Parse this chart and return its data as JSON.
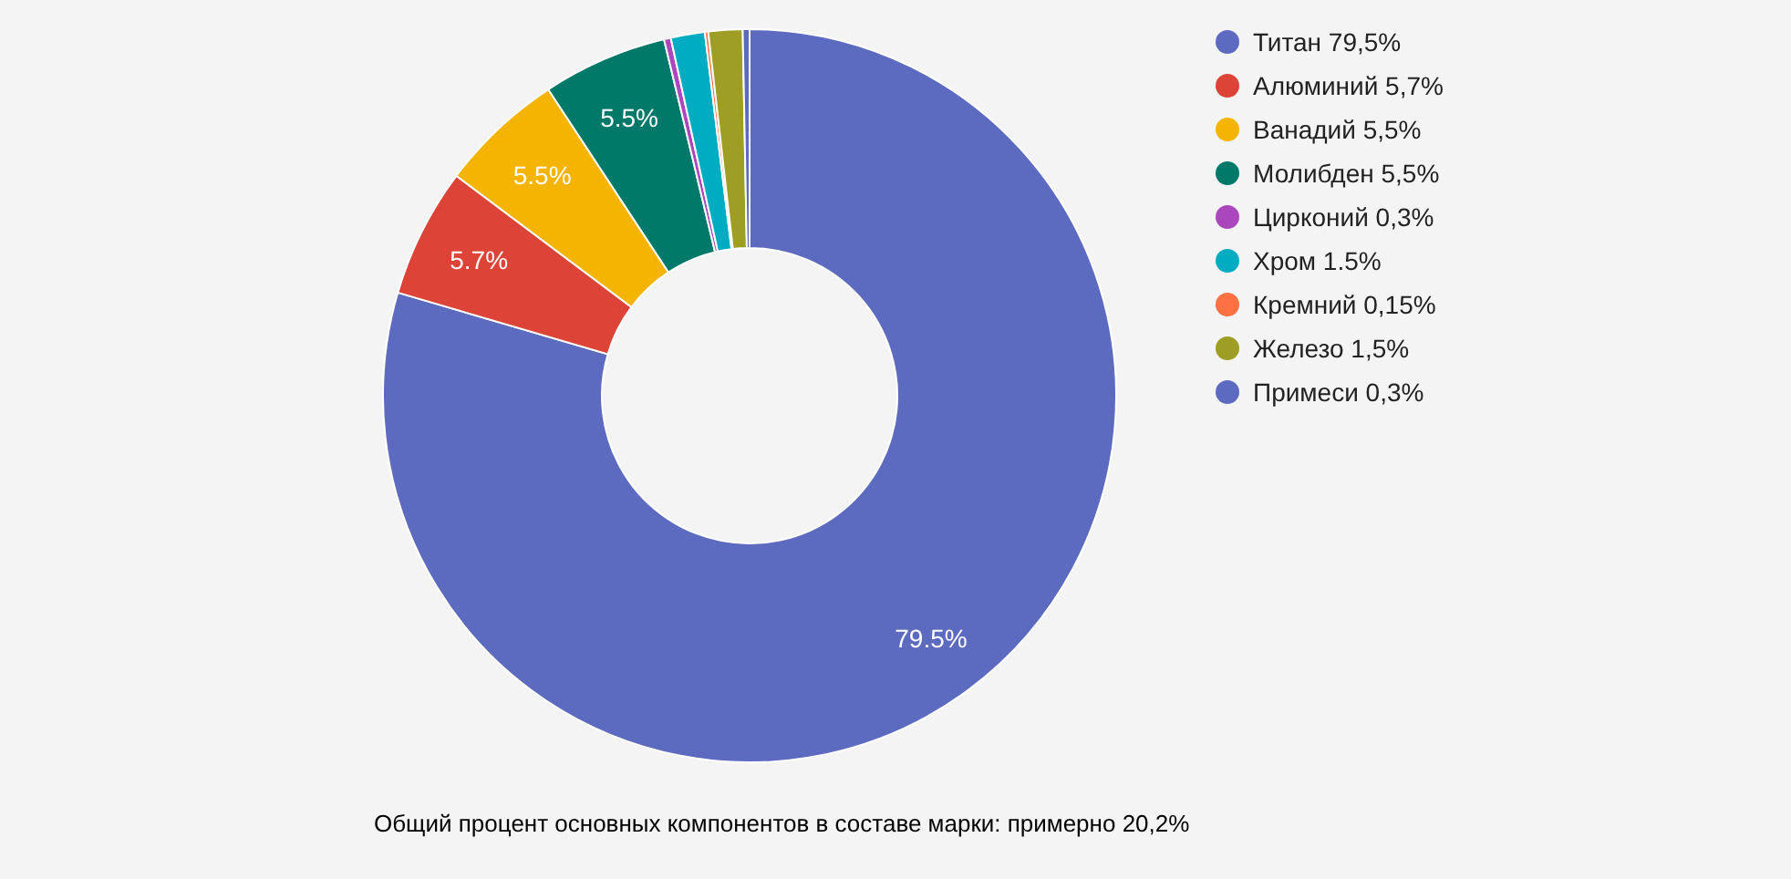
{
  "chart_data": {
    "type": "donut",
    "categories": [
      "Титан 79,5%",
      "Алюминий 5,7%",
      "Ванадий 5,5%",
      "Молибден 5,5%",
      "Цирконий 0,3%",
      "Хром 1.5%",
      "Кремний 0,15%",
      "Железо 1,5%",
      "Примеси 0,3%"
    ],
    "values": [
      79.5,
      5.7,
      5.5,
      5.5,
      0.3,
      1.5,
      0.15,
      1.5,
      0.3
    ],
    "colors": [
      "#5c6bc0",
      "#dd4437",
      "#f4b400",
      "#00796b",
      "#ab47bc",
      "#00acc1",
      "#ff7043",
      "#9e9d24",
      "#5c6bc0"
    ],
    "value_labels": [
      "79.5%",
      "5.7%",
      "5.5%",
      "5.5%",
      null,
      null,
      null,
      null,
      null
    ],
    "legend": "top right",
    "annotations": [
      "Общий процент основных компонентов в составе марки: примерно 20,2%"
    ]
  }
}
